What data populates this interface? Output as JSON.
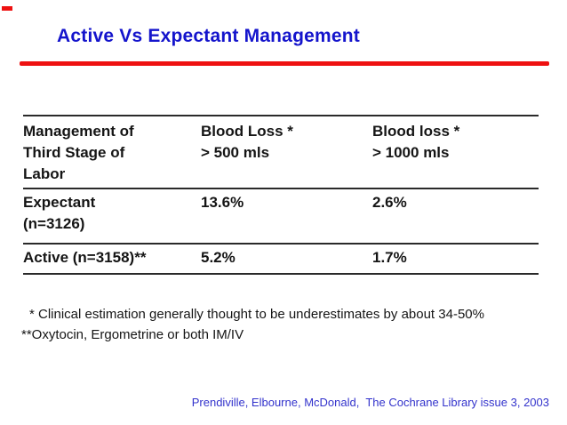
{
  "slide": {
    "title": "Active Vs Expectant Management",
    "colors": {
      "title_blue": "#1414cc",
      "accent_red": "#ee1111",
      "table_text": "#151515",
      "table_rule": "#2a2a2a",
      "citation_blue": "#3333cc"
    }
  },
  "table": {
    "header": {
      "col1": {
        "lines": [
          "Management of",
          "Third Stage of",
          "Labor"
        ]
      },
      "col2": {
        "lines": [
          "Blood Loss *",
          "> 500 mls"
        ]
      },
      "col3": {
        "lines": [
          "Blood loss *",
          "> 1000 mls"
        ]
      }
    },
    "rows": [
      {
        "label_lines": [
          "Expectant",
          "(n=3126)"
        ],
        "blood_loss_500": "13.6%",
        "blood_loss_1000": "2.6%"
      },
      {
        "label_lines": [
          "Active (n=3158)**"
        ],
        "blood_loss_500": "5.2%",
        "blood_loss_1000": "1.7%"
      }
    ]
  },
  "footnotes": [
    "* Clinical estimation generally thought to be underestimates by about 34-50%",
    "**Oxytocin, Ergometrine or both IM/IV"
  ],
  "citation": "Prendiville, Elbourne, McDonald,  The Cochrane Library issue 3, 2003"
}
